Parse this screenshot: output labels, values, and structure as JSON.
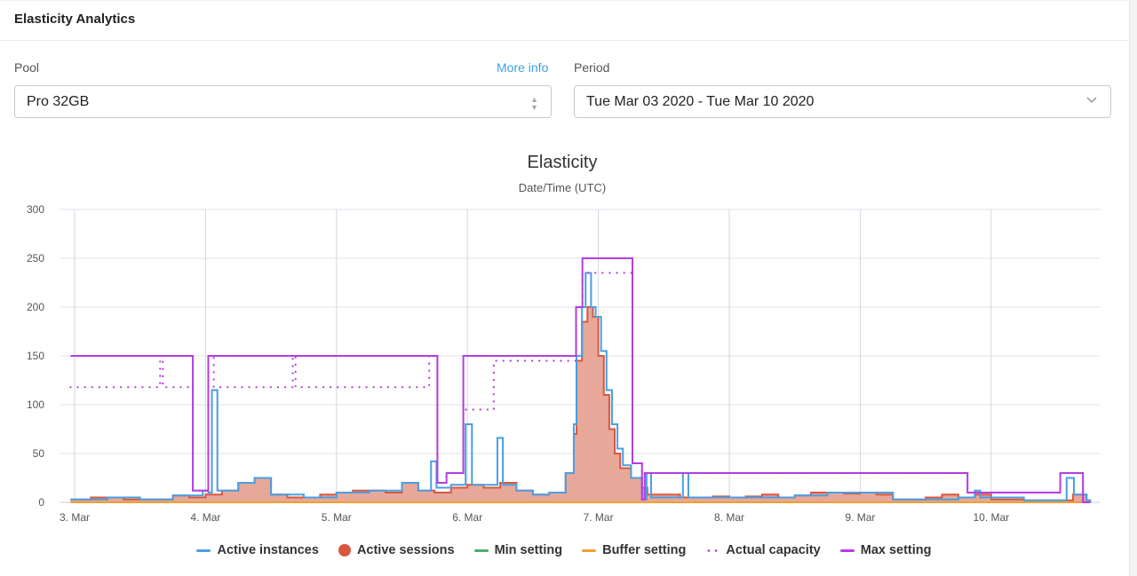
{
  "header": {
    "title": "Elasticity Analytics"
  },
  "form": {
    "pool_label": "Pool",
    "more_info": "More info",
    "pool_value": "Pro 32GB",
    "period_label": "Period",
    "period_value": "Tue Mar 03 2020 - Tue Mar 10 2020"
  },
  "chart_data": {
    "type": "line",
    "title": "Elasticity",
    "subtitle": "Date/Time (UTC)",
    "xlabel": "",
    "ylabel": "",
    "ylim": [
      0,
      300
    ],
    "yticks": [
      "0",
      "50",
      "100",
      "150",
      "200",
      "250",
      "300"
    ],
    "xticks": [
      {
        "t": "2020-03-03T00:00",
        "label": "3. Mar"
      },
      {
        "t": "2020-03-04T00:00",
        "label": "4. Mar"
      },
      {
        "t": "2020-03-05T00:00",
        "label": "5. Mar"
      },
      {
        "t": "2020-03-06T00:00",
        "label": "6. Mar"
      },
      {
        "t": "2020-03-07T00:00",
        "label": "7. Mar"
      },
      {
        "t": "2020-03-08T00:00",
        "label": "8. Mar"
      },
      {
        "t": "2020-03-09T00:00",
        "label": "9. Mar"
      },
      {
        "t": "2020-03-10T00:00",
        "label": "10. Mar"
      }
    ],
    "grid": true,
    "legend_position": "bottom",
    "series": [
      {
        "name": "Active instances",
        "color": "#4a9fe0",
        "style": "step",
        "points": [
          [
            "2020-03-02T23:15",
            3
          ],
          [
            "2020-03-03T06:00",
            5
          ],
          [
            "2020-03-03T12:00",
            3
          ],
          [
            "2020-03-03T18:00",
            7
          ],
          [
            "2020-03-03T23:30",
            12
          ],
          [
            "2020-03-04T00:30",
            10
          ],
          [
            "2020-03-04T01:10",
            115
          ],
          [
            "2020-03-04T02:10",
            12
          ],
          [
            "2020-03-04T06:00",
            20
          ],
          [
            "2020-03-04T09:00",
            25
          ],
          [
            "2020-03-04T12:00",
            8
          ],
          [
            "2020-03-04T18:00",
            5
          ],
          [
            "2020-03-05T00:00",
            10
          ],
          [
            "2020-03-05T06:00",
            12
          ],
          [
            "2020-03-05T12:00",
            20
          ],
          [
            "2020-03-05T15:00",
            12
          ],
          [
            "2020-03-05T17:20",
            42
          ],
          [
            "2020-03-05T18:20",
            15
          ],
          [
            "2020-03-05T21:00",
            18
          ],
          [
            "2020-03-05T23:40",
            80
          ],
          [
            "2020-03-06T00:50",
            18
          ],
          [
            "2020-03-06T05:30",
            66
          ],
          [
            "2020-03-06T06:30",
            18
          ],
          [
            "2020-03-06T09:00",
            12
          ],
          [
            "2020-03-06T12:00",
            8
          ],
          [
            "2020-03-06T15:00",
            10
          ],
          [
            "2020-03-06T18:00",
            30
          ],
          [
            "2020-03-06T19:30",
            80
          ],
          [
            "2020-03-06T20:00",
            150
          ],
          [
            "2020-03-06T21:00",
            200
          ],
          [
            "2020-03-06T21:40",
            235
          ],
          [
            "2020-03-06T22:40",
            200
          ],
          [
            "2020-03-06T23:30",
            190
          ],
          [
            "2020-03-07T00:30",
            155
          ],
          [
            "2020-03-07T01:30",
            115
          ],
          [
            "2020-03-07T02:30",
            80
          ],
          [
            "2020-03-07T03:30",
            55
          ],
          [
            "2020-03-07T04:30",
            38
          ],
          [
            "2020-03-07T06:00",
            25
          ],
          [
            "2020-03-07T08:00",
            3
          ],
          [
            "2020-03-07T08:50",
            30
          ],
          [
            "2020-03-07T09:40",
            5
          ],
          [
            "2020-03-07T15:30",
            30
          ],
          [
            "2020-03-07T16:30",
            5
          ],
          [
            "2020-03-08T00:00",
            5
          ],
          [
            "2020-03-08T12:00",
            7
          ],
          [
            "2020-03-08T18:00",
            10
          ],
          [
            "2020-03-09T00:00",
            10
          ],
          [
            "2020-03-09T06:00",
            3
          ],
          [
            "2020-03-09T18:00",
            5
          ],
          [
            "2020-03-09T21:00",
            12
          ],
          [
            "2020-03-09T22:00",
            5
          ],
          [
            "2020-03-10T06:00",
            2
          ],
          [
            "2020-03-10T13:50",
            25
          ],
          [
            "2020-03-10T15:10",
            8
          ],
          [
            "2020-03-10T17:30",
            2
          ],
          [
            "2020-03-10T18:10",
            0
          ]
        ]
      },
      {
        "name": "Active sessions",
        "color": "#d9573f",
        "fill": "#e6a395",
        "style": "area",
        "points": [
          [
            "2020-03-02T23:15",
            3
          ],
          [
            "2020-03-03T03:00",
            5
          ],
          [
            "2020-03-03T06:00",
            5
          ],
          [
            "2020-03-03T09:00",
            3
          ],
          [
            "2020-03-03T12:00",
            3
          ],
          [
            "2020-03-03T15:00",
            3
          ],
          [
            "2020-03-03T18:00",
            7
          ],
          [
            "2020-03-03T21:00",
            5
          ],
          [
            "2020-03-04T00:00",
            8
          ],
          [
            "2020-03-04T03:00",
            12
          ],
          [
            "2020-03-04T06:00",
            20
          ],
          [
            "2020-03-04T09:00",
            25
          ],
          [
            "2020-03-04T12:00",
            8
          ],
          [
            "2020-03-04T15:00",
            5
          ],
          [
            "2020-03-04T18:00",
            5
          ],
          [
            "2020-03-04T21:00",
            8
          ],
          [
            "2020-03-05T00:00",
            10
          ],
          [
            "2020-03-05T03:00",
            12
          ],
          [
            "2020-03-05T06:00",
            12
          ],
          [
            "2020-03-05T09:00",
            10
          ],
          [
            "2020-03-05T12:00",
            20
          ],
          [
            "2020-03-05T15:00",
            12
          ],
          [
            "2020-03-05T18:00",
            10
          ],
          [
            "2020-03-05T21:00",
            15
          ],
          [
            "2020-03-06T00:00",
            18
          ],
          [
            "2020-03-06T03:00",
            15
          ],
          [
            "2020-03-06T06:00",
            20
          ],
          [
            "2020-03-06T09:00",
            12
          ],
          [
            "2020-03-06T12:00",
            8
          ],
          [
            "2020-03-06T15:00",
            10
          ],
          [
            "2020-03-06T18:00",
            30
          ],
          [
            "2020-03-06T19:30",
            70
          ],
          [
            "2020-03-06T20:00",
            145
          ],
          [
            "2020-03-06T21:00",
            185
          ],
          [
            "2020-03-06T22:00",
            200
          ],
          [
            "2020-03-06T23:00",
            190
          ],
          [
            "2020-03-07T00:00",
            150
          ],
          [
            "2020-03-07T01:00",
            110
          ],
          [
            "2020-03-07T02:00",
            75
          ],
          [
            "2020-03-07T03:00",
            50
          ],
          [
            "2020-03-07T04:00",
            35
          ],
          [
            "2020-03-07T06:00",
            25
          ],
          [
            "2020-03-07T08:00",
            15
          ],
          [
            "2020-03-07T09:00",
            8
          ],
          [
            "2020-03-07T12:00",
            8
          ],
          [
            "2020-03-07T15:00",
            5
          ],
          [
            "2020-03-07T18:00",
            5
          ],
          [
            "2020-03-07T21:00",
            6
          ],
          [
            "2020-03-08T00:00",
            5
          ],
          [
            "2020-03-08T03:00",
            6
          ],
          [
            "2020-03-08T06:00",
            8
          ],
          [
            "2020-03-08T09:00",
            5
          ],
          [
            "2020-03-08T12:00",
            7
          ],
          [
            "2020-03-08T15:00",
            10
          ],
          [
            "2020-03-08T18:00",
            10
          ],
          [
            "2020-03-08T21:00",
            9
          ],
          [
            "2020-03-09T00:00",
            10
          ],
          [
            "2020-03-09T03:00",
            8
          ],
          [
            "2020-03-09T06:00",
            3
          ],
          [
            "2020-03-09T09:00",
            3
          ],
          [
            "2020-03-09T12:00",
            5
          ],
          [
            "2020-03-09T15:00",
            8
          ],
          [
            "2020-03-09T18:00",
            5
          ],
          [
            "2020-03-09T21:00",
            8
          ],
          [
            "2020-03-10T00:00",
            3
          ],
          [
            "2020-03-10T03:00",
            3
          ],
          [
            "2020-03-10T06:00",
            2
          ],
          [
            "2020-03-10T09:00",
            2
          ],
          [
            "2020-03-10T12:00",
            2
          ],
          [
            "2020-03-10T15:00",
            8
          ],
          [
            "2020-03-10T17:30",
            2
          ],
          [
            "2020-03-10T18:10",
            0
          ]
        ]
      },
      {
        "name": "Min setting",
        "color": "#4caf6a",
        "style": "step",
        "points": [
          [
            "2020-03-02T23:15",
            0
          ],
          [
            "2020-03-10T18:10",
            0
          ]
        ]
      },
      {
        "name": "Buffer setting",
        "color": "#f0a030",
        "style": "step",
        "points": [
          [
            "2020-03-02T23:15",
            0
          ],
          [
            "2020-03-10T18:10",
            0
          ]
        ]
      },
      {
        "name": "Actual capacity",
        "color": "#b43de0",
        "style": "dotted-step",
        "points": [
          [
            "2020-03-02T23:15",
            118
          ],
          [
            "2020-03-03T15:40",
            150
          ],
          [
            "2020-03-03T16:10",
            118
          ],
          [
            "2020-03-03T21:40",
            12
          ],
          [
            "2020-03-04T00:30",
            150
          ],
          [
            "2020-03-04T01:30",
            118
          ],
          [
            "2020-03-04T16:00",
            150
          ],
          [
            "2020-03-04T16:30",
            118
          ],
          [
            "2020-03-05T17:00",
            150
          ],
          [
            "2020-03-05T18:30",
            20
          ],
          [
            "2020-03-05T20:10",
            30
          ],
          [
            "2020-03-05T23:15",
            95
          ],
          [
            "2020-03-06T04:50",
            145
          ],
          [
            "2020-03-06T19:55",
            200
          ],
          [
            "2020-03-06T21:05",
            235
          ],
          [
            "2020-03-07T06:15",
            40
          ],
          [
            "2020-03-07T08:00",
            3
          ],
          [
            "2020-03-07T08:30",
            30
          ],
          [
            "2020-03-09T19:40",
            10
          ],
          [
            "2020-03-10T12:40",
            30
          ],
          [
            "2020-03-10T16:50",
            0
          ],
          [
            "2020-03-10T18:10",
            0
          ]
        ]
      },
      {
        "name": "Max setting",
        "color": "#b43de0",
        "style": "step",
        "points": [
          [
            "2020-03-02T23:15",
            150
          ],
          [
            "2020-03-03T21:40",
            12
          ],
          [
            "2020-03-04T00:30",
            150
          ],
          [
            "2020-03-05T18:30",
            20
          ],
          [
            "2020-03-05T20:10",
            30
          ],
          [
            "2020-03-05T23:15",
            150
          ],
          [
            "2020-03-06T19:55",
            200
          ],
          [
            "2020-03-06T21:05",
            250
          ],
          [
            "2020-03-07T06:15",
            40
          ],
          [
            "2020-03-07T08:00",
            3
          ],
          [
            "2020-03-07T08:30",
            30
          ],
          [
            "2020-03-09T19:40",
            10
          ],
          [
            "2020-03-10T12:40",
            30
          ],
          [
            "2020-03-10T16:50",
            0
          ],
          [
            "2020-03-10T18:10",
            0
          ]
        ]
      }
    ]
  }
}
